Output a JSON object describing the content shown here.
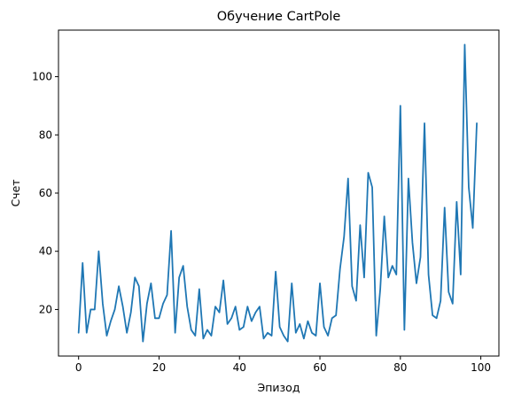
{
  "chart_data": {
    "type": "line",
    "title": "Обучение CartPole",
    "xlabel": "Эпизод",
    "ylabel": "Счет",
    "xlim": [
      -5,
      104.5
    ],
    "ylim": [
      4,
      116
    ],
    "xticks": [
      0,
      20,
      40,
      60,
      80,
      100
    ],
    "yticks": [
      20,
      40,
      60,
      80,
      100
    ],
    "grid": false,
    "line_color": "#1f77b4",
    "series": [
      {
        "values": [
          12,
          36,
          12,
          20,
          20,
          40,
          22,
          11,
          16,
          20,
          28,
          21,
          12,
          19,
          31,
          28,
          9,
          22,
          29,
          17,
          17,
          22,
          25,
          47,
          12,
          31,
          35,
          21,
          13,
          11,
          27,
          10,
          13,
          11,
          21,
          19,
          30,
          15,
          17,
          21,
          13,
          14,
          21,
          16,
          19,
          21,
          10,
          12,
          11,
          33,
          14,
          11,
          9,
          29,
          12,
          15,
          10,
          16,
          12,
          11,
          29,
          14,
          11,
          17,
          18,
          34,
          45,
          65,
          28,
          23,
          49,
          31,
          67,
          62,
          11,
          27,
          52,
          31,
          35,
          32,
          90,
          13,
          65,
          43,
          29,
          38,
          84,
          32,
          18,
          17,
          23,
          55,
          26,
          22,
          57,
          32,
          111,
          62,
          48,
          84
        ]
      }
    ]
  }
}
